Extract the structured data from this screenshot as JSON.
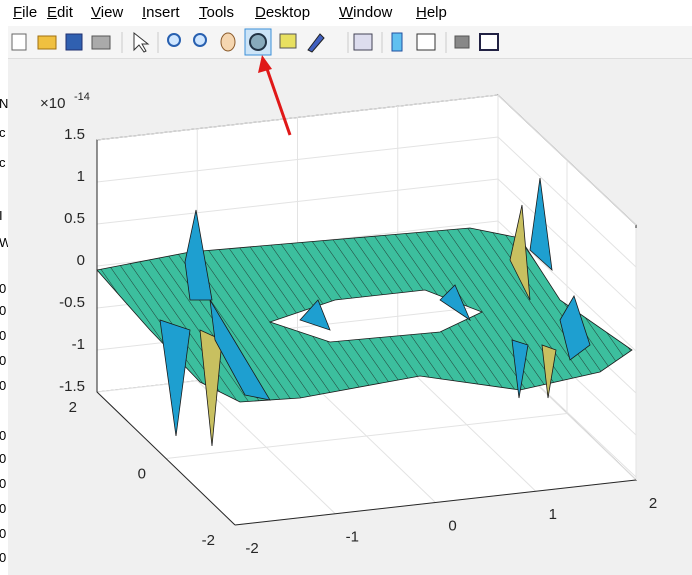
{
  "menu": [
    "File",
    "Edit",
    "View",
    "Insert",
    "Tools",
    "Desktop",
    "Window",
    "Help"
  ],
  "axes": {
    "exponent_base": "×10",
    "exponent": "-14",
    "z_ticks": [
      "1.5",
      "1",
      "0.5",
      "0",
      "-0.5",
      "-1",
      "-1.5"
    ],
    "y_ticks": [
      "2",
      "0",
      "-2"
    ],
    "x_ticks": [
      "-2",
      "-1",
      "0",
      "1",
      "2"
    ]
  },
  "background_fragments": [
    "N",
    "c",
    "c",
    "I",
    "W",
    "0",
    "0",
    "0",
    "0",
    "0",
    "0",
    "0",
    "0",
    "0",
    "0",
    "0"
  ]
}
